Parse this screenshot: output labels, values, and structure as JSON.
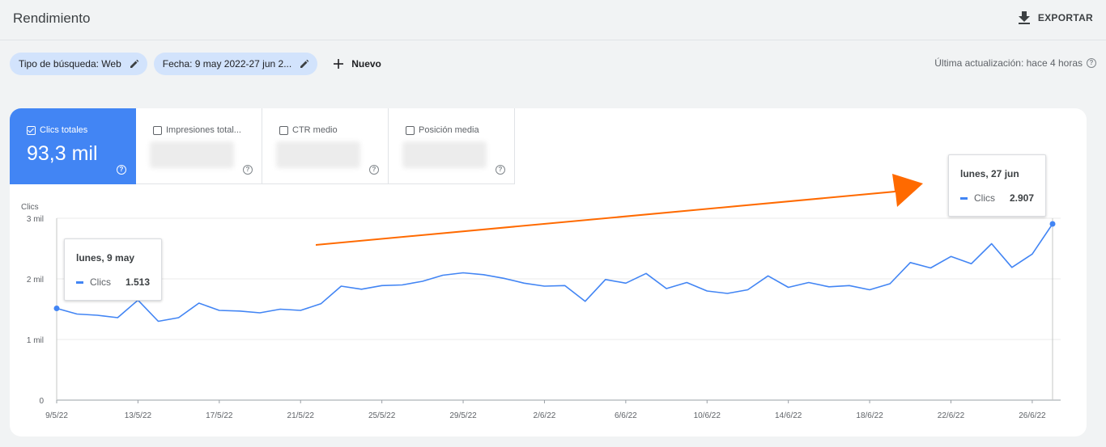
{
  "header": {
    "title": "Rendimiento",
    "export_label": "EXPORTAR"
  },
  "filters": {
    "search_type": "Tipo de búsqueda: Web",
    "date": "Fecha: 9 may 2022-27 jun 2...",
    "new_label": "Nuevo",
    "last_update": "Última actualización: hace 4 horas"
  },
  "metrics": [
    {
      "label": "Clics totales",
      "value": "93,3 mil",
      "checked": true
    },
    {
      "label": "Impresiones total...",
      "checked": false
    },
    {
      "label": "CTR medio",
      "checked": false
    },
    {
      "label": "Posición media",
      "checked": false
    }
  ],
  "tooltips": {
    "start": {
      "date": "lunes, 9 may",
      "series": "Clics",
      "value": "1.513"
    },
    "end": {
      "date": "lunes, 27 jun",
      "series": "Clics",
      "value": "2.907"
    }
  },
  "colors": {
    "accent": "#4285f4",
    "arrow": "#ff6a00"
  },
  "chart_data": {
    "type": "line",
    "ylabel": "Clics",
    "y_ticks": [
      "0",
      "1 mil",
      "2 mil",
      "3 mil"
    ],
    "ylim": [
      0,
      3000
    ],
    "x_ticks": [
      "9/5/22",
      "13/5/22",
      "17/5/22",
      "21/5/22",
      "25/5/22",
      "29/5/22",
      "2/6/22",
      "6/6/22",
      "10/6/22",
      "14/6/22",
      "18/6/22",
      "22/6/22",
      "26/6/22"
    ],
    "x": [
      "9/5/22",
      "10/5/22",
      "11/5/22",
      "12/5/22",
      "13/5/22",
      "14/5/22",
      "15/5/22",
      "16/5/22",
      "17/5/22",
      "18/5/22",
      "19/5/22",
      "20/5/22",
      "21/5/22",
      "22/5/22",
      "23/5/22",
      "24/5/22",
      "25/5/22",
      "26/5/22",
      "27/5/22",
      "28/5/22",
      "29/5/22",
      "30/5/22",
      "31/5/22",
      "1/6/22",
      "2/6/22",
      "3/6/22",
      "4/6/22",
      "5/6/22",
      "6/6/22",
      "7/6/22",
      "8/6/22",
      "9/6/22",
      "10/6/22",
      "11/6/22",
      "12/6/22",
      "13/6/22",
      "14/6/22",
      "15/6/22",
      "16/6/22",
      "17/6/22",
      "18/6/22",
      "19/6/22",
      "20/6/22",
      "21/6/22",
      "22/6/22",
      "23/6/22",
      "24/6/22",
      "25/6/22",
      "26/6/22",
      "27/6/22"
    ],
    "series": [
      {
        "name": "Clics",
        "values": [
          1513,
          1420,
          1400,
          1360,
          1650,
          1300,
          1360,
          1600,
          1480,
          1470,
          1440,
          1500,
          1480,
          1590,
          1880,
          1830,
          1890,
          1900,
          1960,
          2060,
          2100,
          2070,
          2010,
          1930,
          1880,
          1890,
          1630,
          1990,
          1930,
          2090,
          1840,
          1940,
          1800,
          1760,
          1820,
          2050,
          1860,
          1940,
          1870,
          1890,
          1820,
          1920,
          2270,
          2180,
          2370,
          2250,
          2580,
          2190,
          2410,
          2907
        ]
      }
    ],
    "grid": true
  }
}
